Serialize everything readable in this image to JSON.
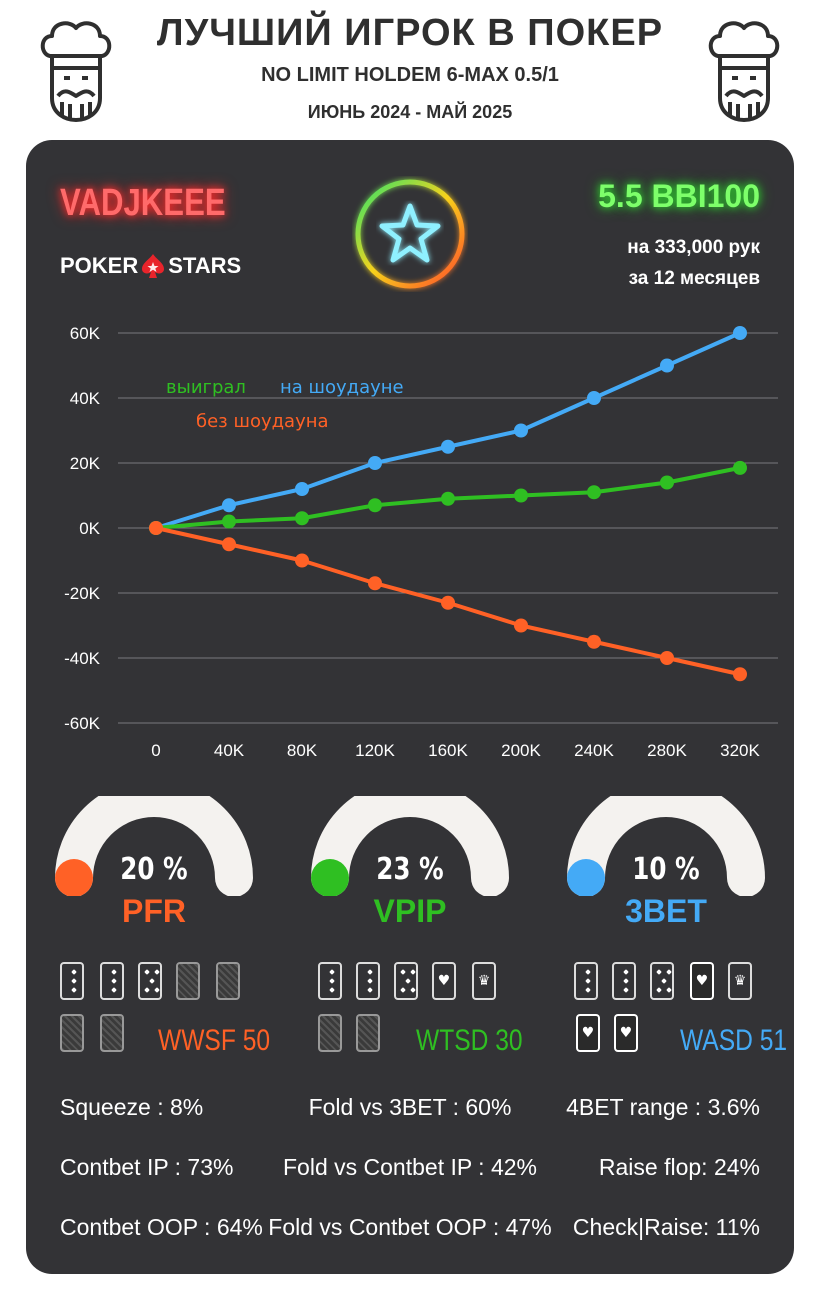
{
  "header": {
    "title": "ЛУЧШИЙ ИГРОК В ПОКЕР",
    "subtitle": "NO LIMIT HOLDEM 6-MAX 0.5/1",
    "period": "ИЮНЬ 2024 - МАЙ 2025"
  },
  "player": {
    "name": "VADJKEEE",
    "room_left": "POKER",
    "room_right": "STARS",
    "winrate": "5.5 BBI100",
    "hands_line": "на 333,000 рук",
    "months_line": "за  12 месяцев"
  },
  "colors": {
    "blue": "#44aaf6",
    "green": "#2fbf22",
    "orange": "#ff6126",
    "panel": "#333336"
  },
  "chart_data": {
    "type": "line",
    "x": [
      "0",
      "40K",
      "80K",
      "120K",
      "160K",
      "200K",
      "240K",
      "280K",
      "320K"
    ],
    "y_ticks": [
      "60K",
      "40K",
      "20K",
      "0K",
      "-20K",
      "-40K",
      "-60K"
    ],
    "ylim": [
      -60000,
      60000
    ],
    "grid": true,
    "series": [
      {
        "name": "на шоудауне",
        "color": "#44aaf6",
        "values": [
          0,
          7000,
          12000,
          20000,
          25000,
          30000,
          40000,
          50000,
          60000
        ]
      },
      {
        "name": "выиграл",
        "color": "#2fbf22",
        "values": [
          0,
          2000,
          3000,
          7000,
          9000,
          10000,
          11000,
          14000,
          18500
        ]
      },
      {
        "name": "без шоудауна",
        "color": "#ff6126",
        "values": [
          0,
          -5000,
          -10000,
          -17000,
          -23000,
          -30000,
          -35000,
          -40000,
          -45000
        ]
      }
    ]
  },
  "gauges": [
    {
      "value": "20 %",
      "label": "PFR",
      "fraction": 0.2,
      "color": "#ff6126"
    },
    {
      "value": "23 %",
      "label": "VPIP",
      "fraction": 0.23,
      "color": "#2fbf22"
    },
    {
      "value": "10 %",
      "label": "3BET",
      "fraction": 0.1,
      "color": "#44aaf6"
    }
  ],
  "wstats": [
    {
      "label": "WWSF 50",
      "color": "#ff6126"
    },
    {
      "label": "WTSD 30",
      "color": "#2fbf22"
    },
    {
      "label": "WASD 51",
      "color": "#44aaf6"
    }
  ],
  "stats": {
    "left": [
      "Squeeze : 8%",
      "Contbet IP : 73%",
      "Contbet OOP : 64%"
    ],
    "center": [
      "Fold vs 3BET : 60%",
      "Fold vs Contbet IP : 42%",
      "Fold vs Contbet OOP : 47%"
    ],
    "right": [
      "4BET range : 3.6%",
      "Raise flop: 24%",
      "Check|Raise: 11%"
    ]
  }
}
